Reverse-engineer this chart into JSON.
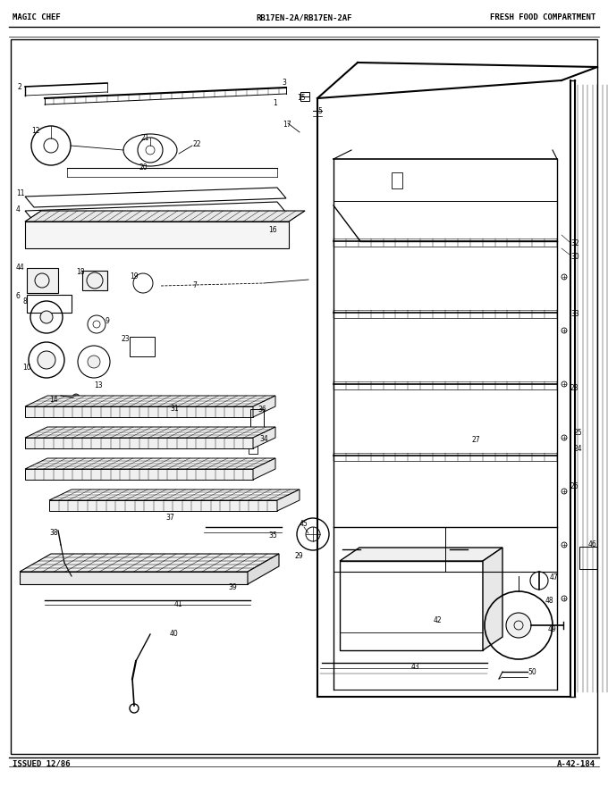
{
  "title_left": "MAGIC CHEF",
  "title_center": "RB17EN-2A/RB17EN-2AF",
  "title_right": "FRESH FOOD COMPARTMENT",
  "footer_left": "ISSUED 12/86",
  "footer_right": "A-42-184",
  "bg_color": "#ffffff",
  "line_color": "#000000",
  "font_size_header": 6.5,
  "font_size_label": 5.5
}
